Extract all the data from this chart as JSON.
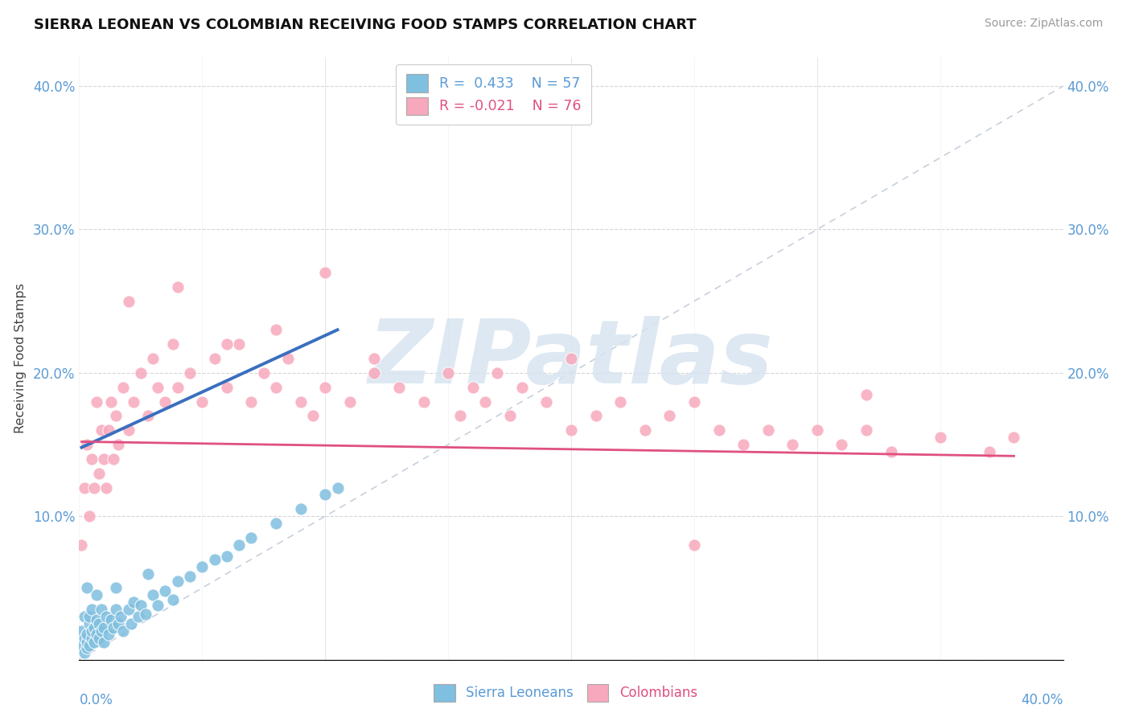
{
  "title": "SIERRA LEONEAN VS COLOMBIAN RECEIVING FOOD STAMPS CORRELATION CHART",
  "source": "Source: ZipAtlas.com",
  "ylabel": "Receiving Food Stamps",
  "xlim": [
    0,
    0.4
  ],
  "ylim": [
    0,
    0.42
  ],
  "yticks": [
    0.0,
    0.1,
    0.2,
    0.3,
    0.4
  ],
  "blue_color": "#7fbfdf",
  "pink_color": "#f7a8bc",
  "blue_line_color": "#3a6fbf",
  "pink_line_color": "#e05080",
  "diag_color": "#c8d0dc",
  "watermark_color": "#d8e4f0",
  "watermark": "ZIPatlas",
  "sierra_x": [
    0.001,
    0.001,
    0.002,
    0.002,
    0.002,
    0.003,
    0.003,
    0.003,
    0.004,
    0.004,
    0.004,
    0.005,
    0.005,
    0.005,
    0.006,
    0.006,
    0.007,
    0.007,
    0.008,
    0.008,
    0.009,
    0.009,
    0.01,
    0.01,
    0.011,
    0.012,
    0.013,
    0.014,
    0.015,
    0.016,
    0.017,
    0.018,
    0.02,
    0.021,
    0.022,
    0.024,
    0.025,
    0.027,
    0.03,
    0.032,
    0.035,
    0.038,
    0.04,
    0.045,
    0.05,
    0.055,
    0.06,
    0.065,
    0.07,
    0.08,
    0.09,
    0.1,
    0.105,
    0.028,
    0.015,
    0.007,
    0.003
  ],
  "sierra_y": [
    0.01,
    0.02,
    0.03,
    0.005,
    0.015,
    0.008,
    0.012,
    0.018,
    0.01,
    0.025,
    0.03,
    0.015,
    0.02,
    0.035,
    0.012,
    0.022,
    0.018,
    0.028,
    0.015,
    0.025,
    0.02,
    0.035,
    0.012,
    0.022,
    0.03,
    0.018,
    0.028,
    0.022,
    0.035,
    0.025,
    0.03,
    0.02,
    0.035,
    0.025,
    0.04,
    0.03,
    0.038,
    0.032,
    0.045,
    0.038,
    0.048,
    0.042,
    0.055,
    0.058,
    0.065,
    0.07,
    0.072,
    0.08,
    0.085,
    0.095,
    0.105,
    0.115,
    0.12,
    0.06,
    0.05,
    0.045,
    0.05
  ],
  "colombia_x": [
    0.001,
    0.002,
    0.003,
    0.004,
    0.005,
    0.006,
    0.007,
    0.008,
    0.009,
    0.01,
    0.011,
    0.012,
    0.013,
    0.014,
    0.015,
    0.016,
    0.018,
    0.02,
    0.022,
    0.025,
    0.028,
    0.03,
    0.032,
    0.035,
    0.038,
    0.04,
    0.045,
    0.05,
    0.055,
    0.06,
    0.065,
    0.07,
    0.075,
    0.08,
    0.085,
    0.09,
    0.095,
    0.1,
    0.11,
    0.12,
    0.13,
    0.14,
    0.15,
    0.155,
    0.16,
    0.165,
    0.17,
    0.175,
    0.18,
    0.19,
    0.2,
    0.21,
    0.22,
    0.23,
    0.24,
    0.25,
    0.26,
    0.27,
    0.28,
    0.29,
    0.3,
    0.31,
    0.32,
    0.33,
    0.35,
    0.37,
    0.38,
    0.02,
    0.04,
    0.06,
    0.08,
    0.1,
    0.12,
    0.2,
    0.25,
    0.32
  ],
  "colombia_y": [
    0.08,
    0.12,
    0.15,
    0.1,
    0.14,
    0.12,
    0.18,
    0.13,
    0.16,
    0.14,
    0.12,
    0.16,
    0.18,
    0.14,
    0.17,
    0.15,
    0.19,
    0.16,
    0.18,
    0.2,
    0.17,
    0.21,
    0.19,
    0.18,
    0.22,
    0.19,
    0.2,
    0.18,
    0.21,
    0.19,
    0.22,
    0.18,
    0.2,
    0.19,
    0.21,
    0.18,
    0.17,
    0.19,
    0.18,
    0.2,
    0.19,
    0.18,
    0.2,
    0.17,
    0.19,
    0.18,
    0.2,
    0.17,
    0.19,
    0.18,
    0.16,
    0.17,
    0.18,
    0.16,
    0.17,
    0.18,
    0.16,
    0.15,
    0.16,
    0.15,
    0.16,
    0.15,
    0.16,
    0.145,
    0.155,
    0.145,
    0.155,
    0.25,
    0.26,
    0.22,
    0.23,
    0.27,
    0.21,
    0.21,
    0.08,
    0.185
  ],
  "blue_line_x": [
    0.001,
    0.105
  ],
  "blue_line_y": [
    0.148,
    0.23
  ],
  "pink_line_x": [
    0.001,
    0.38
  ],
  "pink_line_y": [
    0.152,
    0.142
  ]
}
